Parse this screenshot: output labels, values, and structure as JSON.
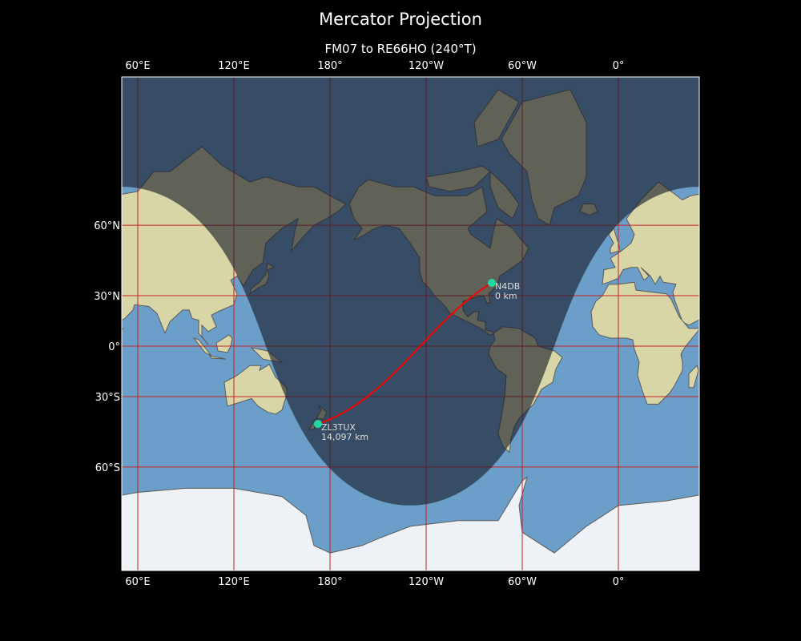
{
  "figure": {
    "title": "Mercator Projection",
    "subtitle": "FM07 to RE66HO (240°T)"
  },
  "map": {
    "projection": "mercator",
    "central_longitude": -130,
    "lat_range": [
      -80,
      84
    ],
    "lon_ticks": [
      {
        "lon": 60,
        "label": "60°E"
      },
      {
        "lon": 120,
        "label": "120°E"
      },
      {
        "lon": 180,
        "label": "180°"
      },
      {
        "lon": -120,
        "label": "120°W"
      },
      {
        "lon": -60,
        "label": "60°W"
      },
      {
        "lon": 0,
        "label": "0°"
      }
    ],
    "lat_ticks": [
      {
        "lat": 60,
        "label": "60°N"
      },
      {
        "lat": 30,
        "label": "30°N"
      },
      {
        "lat": 0,
        "label": "0°"
      },
      {
        "lat": -30,
        "label": "30°S"
      },
      {
        "lat": -60,
        "label": "60°S"
      }
    ],
    "grid": true,
    "night_shading": true,
    "subsolar_point": {
      "lat": -20,
      "lon": 50
    },
    "colors": {
      "grid": "#c82020",
      "path": "#ff0000",
      "marker": "#1fd9a0",
      "ocean": "#6b9fc9",
      "land": "#d8d6a6",
      "ice": "#eef2f6"
    }
  },
  "stations": [
    {
      "call": "N4DB",
      "distance": "0 km",
      "grid": "FM07",
      "lat": 36.7,
      "lon": -79.0
    },
    {
      "call": "ZL3TUX",
      "distance": "14,097 km",
      "grid": "RE66HO",
      "lat": -43.6,
      "lon": 172.5
    }
  ]
}
